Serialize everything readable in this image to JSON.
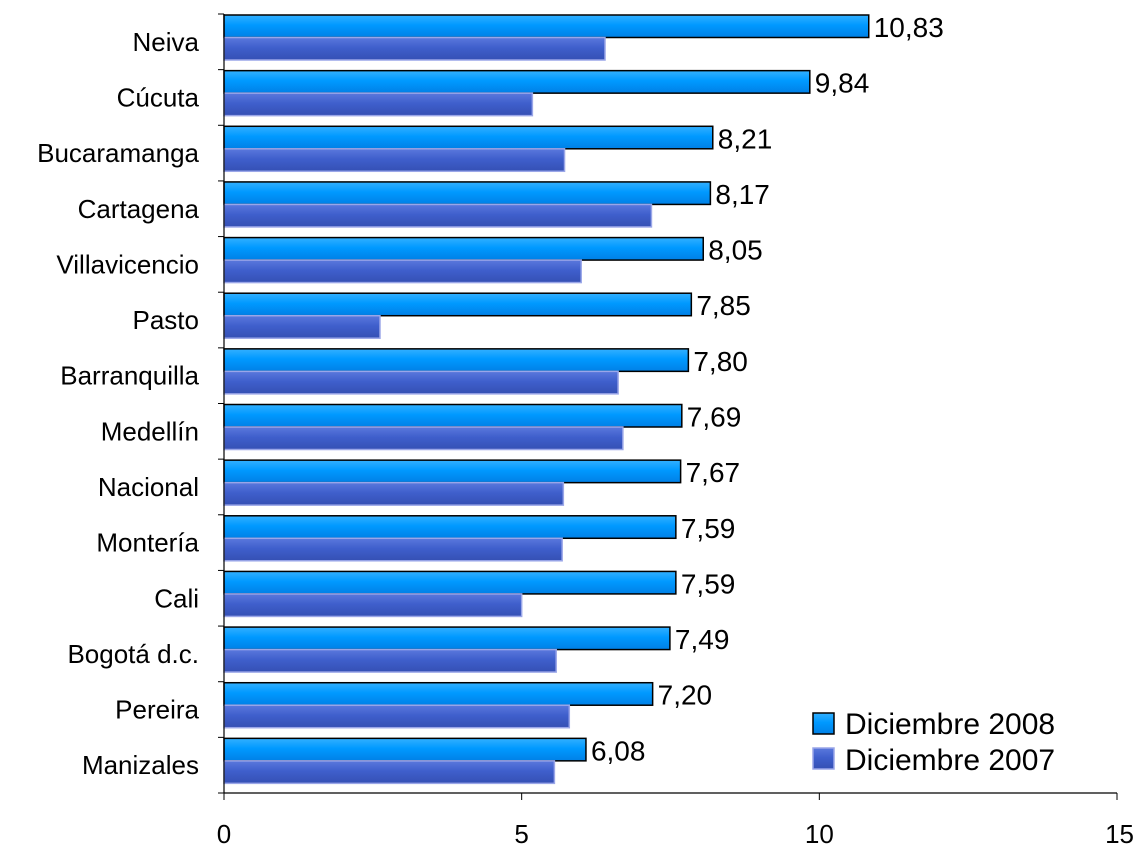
{
  "chart_data": {
    "type": "bar",
    "orientation": "horizontal",
    "categories": [
      "Neiva",
      "Cúcuta",
      "Bucaramanga",
      "Cartagena",
      "Villavicencio",
      "Pasto",
      "Barranquilla",
      "Medellín",
      "Nacional",
      "Montería",
      "Cali",
      "Bogotá d.c.",
      "Pereira",
      "Manizales"
    ],
    "series": [
      {
        "name": "Diciembre 2008",
        "color": "#0099ff",
        "values": [
          10.83,
          9.84,
          8.21,
          8.17,
          8.05,
          7.85,
          7.8,
          7.69,
          7.67,
          7.59,
          7.59,
          7.49,
          7.2,
          6.08
        ],
        "labels": [
          "10,83",
          "9,84",
          "8,21",
          "8,17",
          "8,05",
          "7,85",
          "7,80",
          "7,69",
          "7,67",
          "7,59",
          "7,59",
          "7,49",
          "7,20",
          "6,08"
        ]
      },
      {
        "name": "Diciembre 2007",
        "color": "#3f5fcc",
        "values": [
          6.4,
          5.18,
          5.72,
          7.18,
          6.0,
          2.62,
          6.62,
          6.7,
          5.7,
          5.68,
          5.0,
          5.58,
          5.8,
          5.55
        ]
      }
    ],
    "xlim": [
      0,
      15
    ],
    "xticks": [
      0,
      5,
      10,
      15
    ],
    "xtick_labels": [
      "0",
      "5",
      "10",
      "15"
    ],
    "grid": false,
    "legend_position": "bottom-right"
  }
}
